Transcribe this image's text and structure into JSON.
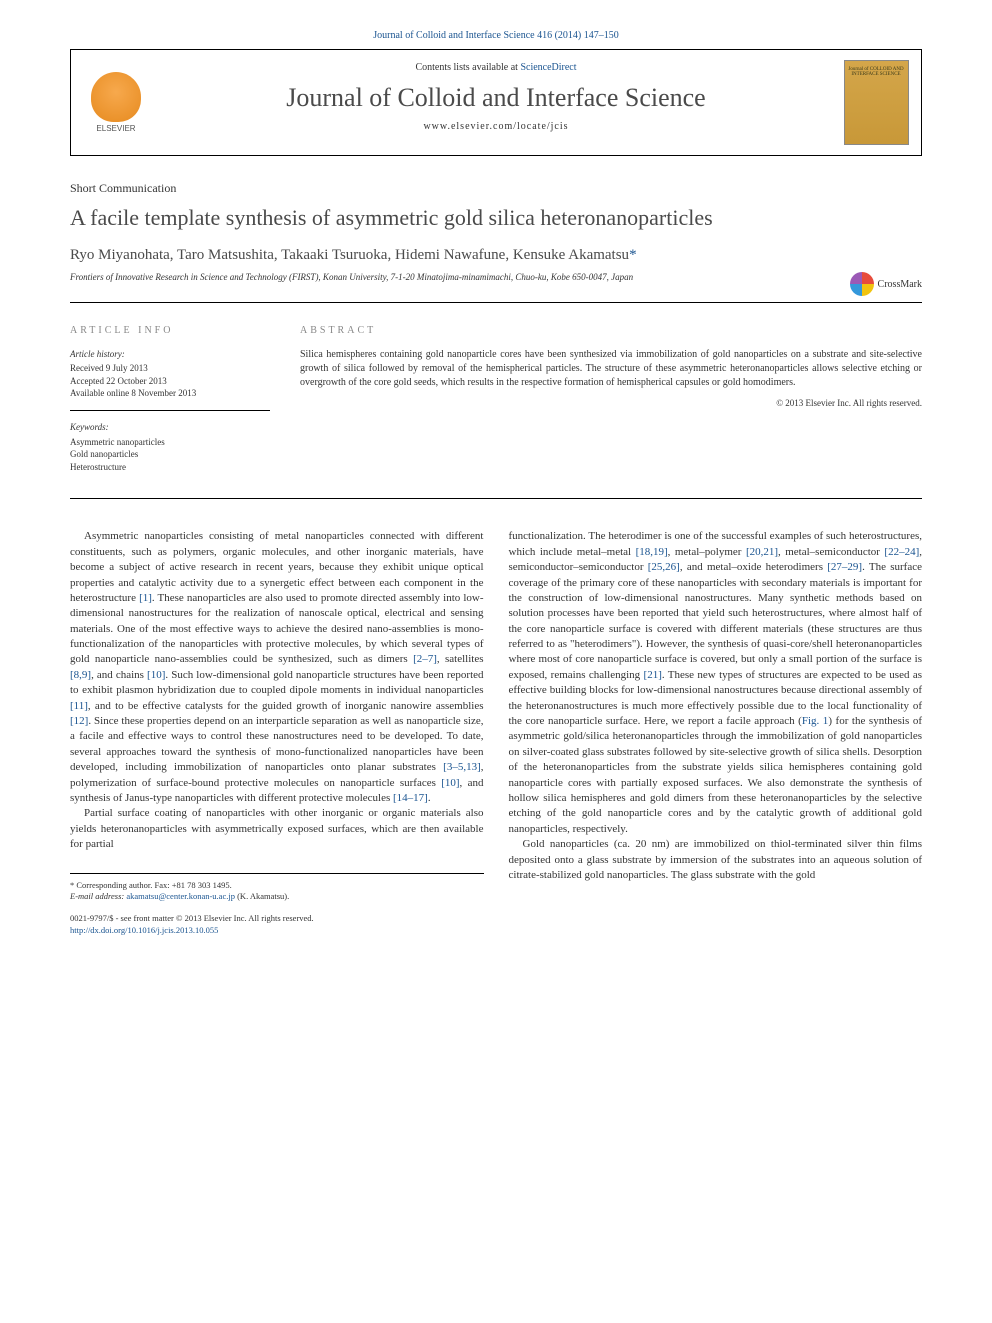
{
  "citation": "Journal of Colloid and Interface Science 416 (2014) 147–150",
  "header": {
    "contents_prefix": "Contents lists available at ",
    "sciencedirect": "ScienceDirect",
    "journal_name": "Journal of Colloid and Interface Science",
    "url": "www.elsevier.com/locate/jcis",
    "elsevier_label": "ELSEVIER",
    "cover_text": "Journal of COLLOID AND INTERFACE SCIENCE"
  },
  "article": {
    "type": "Short Communication",
    "title": "A facile template synthesis of asymmetric gold silica heteronanoparticles",
    "crossmark": "CrossMark",
    "authors": "Ryo Miyanohata, Taro Matsushita, Takaaki Tsuruoka, Hidemi Nawafune, Kensuke Akamatsu",
    "corresponding_mark": "*",
    "affiliation": "Frontiers of Innovative Research in Science and Technology (FIRST), Konan University, 7-1-20 Minatojima-minamimachi, Chuo-ku, Kobe 650-0047, Japan"
  },
  "info": {
    "header": "ARTICLE INFO",
    "history_label": "Article history:",
    "received": "Received 9 July 2013",
    "accepted": "Accepted 22 October 2013",
    "online": "Available online 8 November 2013",
    "keywords_label": "Keywords:",
    "kw1": "Asymmetric nanoparticles",
    "kw2": "Gold nanoparticles",
    "kw3": "Heterostructure"
  },
  "abstract": {
    "header": "ABSTRACT",
    "text": "Silica hemispheres containing gold nanoparticle cores have been synthesized via immobilization of gold nanoparticles on a substrate and site-selective growth of silica followed by removal of the hemispherical particles. The structure of these asymmetric heteronanoparticles allows selective etching or overgrowth of the core gold seeds, which results in the respective formation of hemispherical capsules or gold homodimers.",
    "copyright": "© 2013 Elsevier Inc. All rights reserved."
  },
  "body": {
    "left": {
      "p1a": "Asymmetric nanoparticles consisting of metal nanoparticles connected with different constituents, such as polymers, organic molecules, and other inorganic materials, have become a subject of active research in recent years, because they exhibit unique optical properties and catalytic activity due to a synergetic effect between each component in the heterostructure ",
      "r1": "[1]",
      "p1b": ". These nanoparticles are also used to promote directed assembly into low-dimensional nanostructures for the realization of nanoscale optical, electrical and sensing materials. One of the most effective ways to achieve the desired nano-assemblies is mono-functionalization of the nanoparticles with protective molecules, by which several types of gold nanoparticle nano-assemblies could be synthesized, such as dimers ",
      "r2": "[2–7]",
      "p1c": ", satellites ",
      "r3": "[8,9]",
      "p1d": ", and chains ",
      "r4": "[10]",
      "p1e": ". Such low-dimensional gold nanoparticle structures have been reported to exhibit plasmon hybridization due to coupled dipole moments in individual nanoparticles ",
      "r5": "[11]",
      "p1f": ", and to be effective catalysts for the guided growth of inorganic nanowire assemblies ",
      "r6": "[12]",
      "p1g": ". Since these properties depend on an interparticle separation as well as nanoparticle size, a facile and effective ways to control these nanostructures need to be developed. To date, several approaches toward the synthesis of mono-functionalized nanoparticles have been developed, including immobilization of nanoparticles onto planar substrates ",
      "r7": "[3–5,13]",
      "p1h": ", polymerization of surface-bound protective molecules on nanoparticle surfaces ",
      "r8": "[10]",
      "p1i": ", and synthesis of Janus-type nanoparticles with different protective molecules ",
      "r9": "[14–17]",
      "p1j": ".",
      "p2": "Partial surface coating of nanoparticles with other inorganic or organic materials also yields heteronanoparticles with asymmetrically exposed surfaces, which are then available for partial"
    },
    "right": {
      "p1a": "functionalization. The heterodimer is one of the successful examples of such heterostructures, which include metal–metal ",
      "r1": "[18,19]",
      "p1b": ", metal–polymer ",
      "r2": "[20,21]",
      "p1c": ", metal–semiconductor ",
      "r3": "[22–24]",
      "p1d": ", semiconductor–semiconductor ",
      "r4": "[25,26]",
      "p1e": ", and metal–oxide heterodimers ",
      "r5": "[27–29]",
      "p1f": ". The surface coverage of the primary core of these nanoparticles with secondary materials is important for the construction of low-dimensional nanostructures. Many synthetic methods based on solution processes have been reported that yield such heterostructures, where almost half of the core nanoparticle surface is covered with different materials (these structures are thus referred to as \"heterodimers\"). However, the synthesis of quasi-core/shell heteronanoparticles where most of core nanoparticle surface is covered, but only a small portion of the surface is exposed, remains challenging ",
      "r6": "[21]",
      "p1g": ". These new types of structures are expected to be used as effective building blocks for low-dimensional nanostructures because directional assembly of the heteronanostructures is much more effectively possible due to the local functionality of the core nanoparticle surface. Here, we report a facile approach (",
      "r7": "Fig. 1",
      "p1h": ") for the synthesis of asymmetric gold/silica heteronanoparticles through the immobilization of gold nanoparticles on silver-coated glass substrates followed by site-selective growth of silica shells. Desorption of the heteronanoparticles from the substrate yields silica hemispheres containing gold nanoparticle cores with partially exposed surfaces. We also demonstrate the synthesis of hollow silica hemispheres and gold dimers from these heteronanoparticles by the selective etching of the gold nanoparticle cores and by the catalytic growth of additional gold nanoparticles, respectively.",
      "p2": "Gold nanoparticles (ca. 20 nm) are immobilized on thiol-terminated silver thin films deposited onto a glass substrate by immersion of the substrates into an aqueous solution of citrate-stabilized gold nanoparticles. The glass substrate with the gold"
    }
  },
  "footnotes": {
    "corr": "* Corresponding author. Fax: +81 78 303 1495.",
    "email_label": "E-mail address: ",
    "email": "akamatsu@center.konan-u.ac.jp",
    "email_name": " (K. Akamatsu)."
  },
  "doi": {
    "issn": "0021-9797/$ - see front matter © 2013 Elsevier Inc. All rights reserved.",
    "url": "http://dx.doi.org/10.1016/j.jcis.2013.10.055"
  },
  "colors": {
    "link": "#1a5490",
    "text": "#333333",
    "heading": "#4a4a4a",
    "logo_orange": "#e68a1f",
    "cover_gold": "#c89838"
  }
}
